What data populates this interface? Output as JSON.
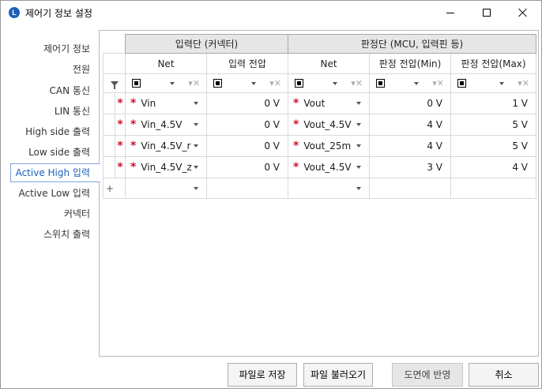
{
  "window": {
    "title": "제어기 정보 설정",
    "app_icon": "L"
  },
  "sidebar": {
    "items": [
      {
        "label": "제어기 정보"
      },
      {
        "label": "전원"
      },
      {
        "label": "CAN 통신"
      },
      {
        "label": "LIN 통신"
      },
      {
        "label": "High side 출력"
      },
      {
        "label": "Low side 출력"
      },
      {
        "label": "Active High 입력"
      },
      {
        "label": "Active Low 입력"
      },
      {
        "label": "커넥터"
      },
      {
        "label": "스위치 출력"
      }
    ],
    "active_index": 6
  },
  "grid": {
    "groups": {
      "input": "입력단 (커넥터)",
      "judge": "판정단 (MCU, 입력핀 등)"
    },
    "columns": {
      "net_in": "Net",
      "input_voltage": "입력 전압",
      "net_out": "Net",
      "judge_min": "판정 전압(Min)",
      "judge_max": "판정 전압(Max)"
    },
    "rows": [
      {
        "req": "*",
        "net_in": "Vin",
        "input_voltage": "0 V",
        "net_out": "Vout",
        "judge_min": "0 V",
        "judge_max": "1 V"
      },
      {
        "req": "*",
        "net_in": "Vin_4.5V",
        "input_voltage": "0 V",
        "net_out": "Vout_4.5V",
        "judge_min": "4 V",
        "judge_max": "5 V"
      },
      {
        "req": "*",
        "net_in": "Vin_4.5V_r",
        "input_voltage": "0 V",
        "net_out": "Vout_25m",
        "judge_min": "4 V",
        "judge_max": "5 V"
      },
      {
        "req": "*",
        "net_in": "Vin_4.5V_z",
        "input_voltage": "0 V",
        "net_out": "Vout_4.5V",
        "judge_min": "3 V",
        "judge_max": "4 V"
      }
    ],
    "new_row_marker": "+",
    "net_star": "*"
  },
  "footer": {
    "save_to_file": "파일로 저장",
    "load_file": "파일 불러오기",
    "apply_drawing": "도면에 반영",
    "cancel": "취소"
  },
  "colors": {
    "accent": "#1c5fb8",
    "required_star": "#d0102c",
    "group_header_bg": "#e6e6e6"
  }
}
